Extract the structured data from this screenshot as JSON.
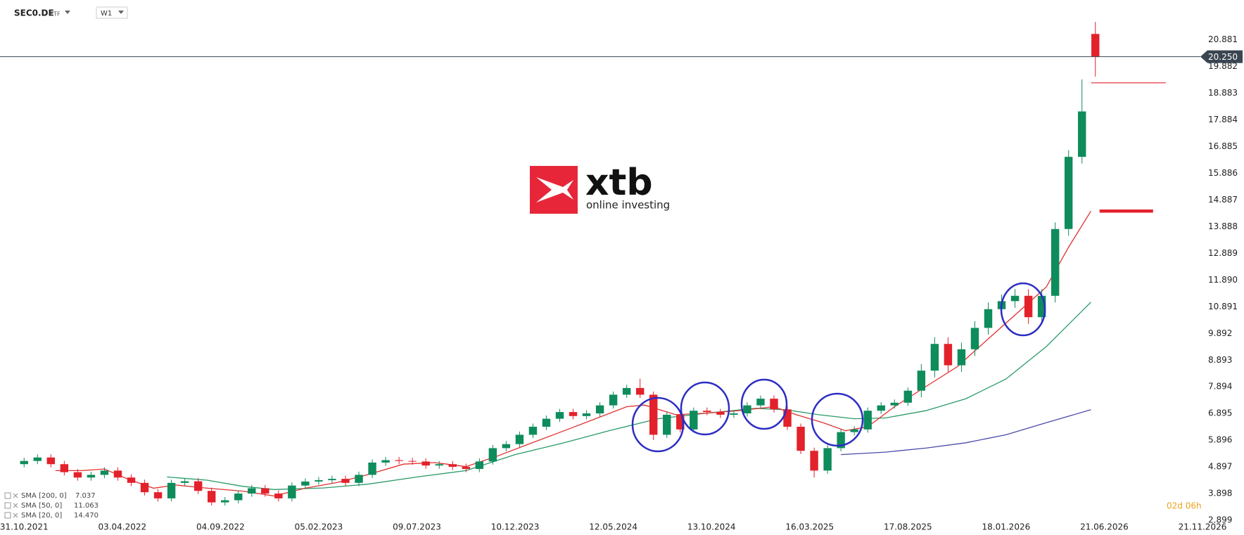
{
  "chart_data": {
    "type": "candlestick",
    "symbol": "SEC0.DE",
    "asset_class": "ETF",
    "interval": "W1",
    "countdown": "02d 06h",
    "brand": "xtb",
    "brand_tagline": "online investing",
    "up_color": "#0e8c5c",
    "down_color": "#e3212b",
    "x": [
      0,
      3,
      6,
      9,
      12,
      15,
      18,
      21,
      24,
      27,
      30,
      33,
      36,
      39,
      42,
      45,
      48,
      51,
      54,
      57,
      60,
      63,
      66,
      69,
      72,
      75,
      78,
      81,
      84,
      87,
      90,
      93,
      96,
      99,
      102,
      105,
      108,
      111,
      114,
      117,
      120,
      123,
      126,
      129,
      132,
      135,
      138,
      141,
      144,
      147,
      150,
      153,
      156,
      159,
      162,
      165,
      168,
      171,
      174,
      177,
      180,
      183,
      186,
      189,
      192,
      195,
      198,
      201,
      204,
      207,
      210,
      213,
      216,
      219,
      222,
      225,
      228,
      231,
      234,
      237,
      240
    ],
    "open": [
      5.0,
      5.12,
      5.25,
      5.0,
      4.7,
      4.5,
      4.6,
      4.76,
      4.5,
      4.3,
      3.95,
      3.72,
      4.3,
      4.36,
      4.0,
      3.57,
      3.65,
      3.9,
      4.1,
      3.9,
      3.72,
      4.2,
      4.35,
      4.4,
      4.45,
      4.3,
      4.6,
      5.06,
      5.15,
      5.12,
      5.1,
      4.95,
      5.0,
      4.9,
      4.82,
      5.1,
      5.6,
      5.75,
      6.1,
      6.4,
      6.7,
      6.95,
      6.8,
      6.9,
      7.2,
      7.6,
      7.85,
      7.6,
      6.1,
      6.85,
      6.3,
      7.0,
      6.95,
      6.85,
      6.9,
      7.2,
      7.45,
      7.05,
      6.4,
      5.5,
      4.76,
      5.6,
      6.2,
      6.3,
      7.0,
      7.2,
      7.3,
      7.75,
      8.5,
      9.5,
      8.7,
      9.3,
      10.1,
      10.8,
      11.1,
      11.3,
      10.5,
      11.3,
      13.8,
      16.5,
      21.1
    ],
    "high": [
      5.24,
      5.37,
      5.37,
      5.12,
      4.82,
      4.72,
      4.88,
      4.88,
      4.62,
      4.42,
      4.07,
      4.42,
      4.48,
      4.48,
      4.12,
      3.77,
      4.02,
      4.22,
      4.22,
      4.02,
      4.32,
      4.47,
      4.52,
      4.57,
      4.57,
      4.72,
      5.18,
      5.27,
      5.27,
      5.24,
      5.22,
      5.12,
      5.12,
      5.02,
      5.22,
      5.72,
      5.87,
      6.22,
      6.52,
      6.82,
      7.07,
      7.07,
      7.02,
      7.32,
      7.72,
      7.97,
      8.2,
      7.72,
      6.97,
      6.97,
      7.12,
      7.12,
      7.07,
      7.02,
      7.32,
      7.57,
      7.57,
      7.17,
      6.52,
      5.62,
      5.72,
      6.32,
      6.42,
      7.12,
      7.32,
      7.42,
      7.87,
      8.75,
      9.75,
      9.75,
      9.55,
      10.35,
      11.05,
      11.35,
      11.55,
      11.55,
      11.55,
      14.05,
      16.75,
      19.4,
      21.55
    ],
    "low": [
      4.88,
      5.0,
      4.88,
      4.58,
      4.38,
      4.38,
      4.48,
      4.38,
      4.18,
      3.83,
      3.6,
      3.6,
      4.18,
      3.88,
      3.45,
      3.45,
      3.53,
      3.78,
      3.78,
      3.6,
      3.6,
      4.08,
      4.23,
      4.28,
      4.18,
      4.18,
      4.48,
      4.94,
      5.0,
      4.98,
      4.83,
      4.83,
      4.78,
      4.7,
      4.7,
      4.98,
      5.48,
      5.63,
      5.98,
      6.28,
      6.58,
      6.68,
      6.68,
      6.78,
      7.08,
      7.48,
      7.48,
      5.9,
      5.98,
      6.18,
      6.18,
      6.83,
      6.73,
      6.73,
      6.78,
      7.08,
      6.93,
      6.28,
      5.38,
      4.5,
      4.64,
      5.48,
      6.08,
      6.18,
      6.88,
      7.08,
      7.18,
      7.5,
      8.25,
      8.45,
      8.45,
      9.05,
      9.85,
      10.55,
      10.85,
      10.25,
      10.25,
      11.05,
      13.55,
      16.25,
      19.5
    ],
    "close": [
      5.12,
      5.25,
      5.0,
      4.7,
      4.5,
      4.6,
      4.76,
      4.5,
      4.3,
      3.95,
      3.72,
      4.3,
      4.36,
      4.0,
      3.57,
      3.65,
      3.9,
      4.1,
      3.9,
      3.72,
      4.2,
      4.35,
      4.4,
      4.45,
      4.3,
      4.6,
      5.06,
      5.15,
      5.12,
      5.1,
      4.95,
      5.0,
      4.9,
      4.82,
      5.1,
      5.6,
      5.75,
      6.1,
      6.4,
      6.7,
      6.95,
      6.8,
      6.9,
      7.2,
      7.6,
      7.85,
      7.6,
      6.1,
      6.85,
      6.3,
      7.0,
      6.95,
      6.85,
      6.9,
      7.2,
      7.45,
      7.05,
      6.4,
      5.5,
      4.76,
      5.6,
      6.2,
      6.3,
      7.0,
      7.2,
      7.3,
      7.75,
      8.5,
      9.5,
      8.7,
      9.3,
      10.1,
      10.8,
      11.1,
      11.3,
      10.5,
      11.3,
      13.8,
      16.5,
      18.2,
      20.25
    ],
    "series": [
      {
        "name": "SMA [200, 0]",
        "last_value_label": "7.037",
        "color": "#4a4aaa",
        "x": [
          183,
          193,
          202,
          211,
          220,
          229,
          239
        ],
        "values": [
          5.36,
          5.45,
          5.6,
          5.8,
          6.1,
          6.55,
          7.037
        ]
      },
      {
        "name": "SMA [50, 0]",
        "last_value_label": "11.063",
        "color": "#2a9a68",
        "x": [
          32,
          41,
          49,
          56,
          67,
          77,
          88,
          99,
          110,
          121,
          131,
          142,
          153,
          164,
          171,
          178,
          186,
          193,
          202,
          211,
          220,
          229,
          239
        ],
        "values": [
          4.52,
          4.4,
          4.17,
          4.05,
          4.11,
          4.25,
          4.52,
          4.76,
          5.36,
          5.8,
          6.25,
          6.7,
          6.91,
          7.09,
          7.03,
          6.85,
          6.7,
          6.73,
          7.0,
          7.45,
          8.19,
          9.4,
          11.063
        ]
      },
      {
        "name": "SMA [20, 0]",
        "last_value_label": "14.470",
        "color": "#e03030",
        "x": [
          7,
          13,
          18,
          23,
          29,
          34,
          41,
          49,
          56,
          63,
          70,
          77,
          85,
          92,
          99,
          106,
          114,
          121,
          128,
          135,
          139,
          146,
          153,
          160,
          168,
          173,
          179,
          184,
          189,
          195,
          202,
          209,
          216,
          223,
          229,
          234,
          239
        ],
        "values": [
          4.76,
          4.76,
          4.82,
          4.46,
          4.1,
          4.22,
          4.1,
          3.99,
          3.81,
          4.1,
          4.31,
          4.61,
          5.0,
          5.06,
          4.91,
          5.3,
          5.81,
          6.25,
          6.7,
          7.15,
          7.21,
          6.85,
          6.91,
          7.0,
          7.15,
          6.85,
          6.55,
          6.25,
          6.4,
          7.15,
          7.9,
          8.64,
          9.69,
          10.73,
          11.63,
          13.12,
          14.47
        ]
      }
    ],
    "last_price": {
      "value": 20.25,
      "label": "20.250"
    },
    "levels": [
      19.27,
      14.47
    ],
    "level_color": "#e3212b",
    "xlim": [
      -5.4,
      273.3
    ],
    "ylim": [
      2.77,
      22.37
    ],
    "xticks": [
      {
        "value": 0,
        "label": "31.10.2021"
      },
      {
        "value": 22,
        "label": "03.04.2022"
      },
      {
        "value": 44,
        "label": "04.09.2022"
      },
      {
        "value": 66,
        "label": "05.02.2023"
      },
      {
        "value": 88,
        "label": "09.07.2023"
      },
      {
        "value": 110,
        "label": "10.12.2023"
      },
      {
        "value": 132,
        "label": "12.05.2024"
      },
      {
        "value": 154,
        "label": "13.10.2024"
      },
      {
        "value": 176,
        "label": "16.03.2025"
      },
      {
        "value": 198,
        "label": "17.08.2025"
      },
      {
        "value": 220,
        "label": "18.01.2026"
      },
      {
        "value": 242,
        "label": "21.06.2026"
      },
      {
        "value": 264,
        "label": "21.11.2026"
      }
    ],
    "yticks": [
      2.899,
      3.898,
      4.897,
      5.896,
      6.895,
      7.894,
      8.893,
      9.892,
      10.891,
      {
        "value": 11.89,
        "label": "11.890"
      },
      12.889,
      13.888,
      14.887,
      15.886,
      16.885,
      17.884,
      18.883,
      19.882,
      20.881
    ]
  }
}
